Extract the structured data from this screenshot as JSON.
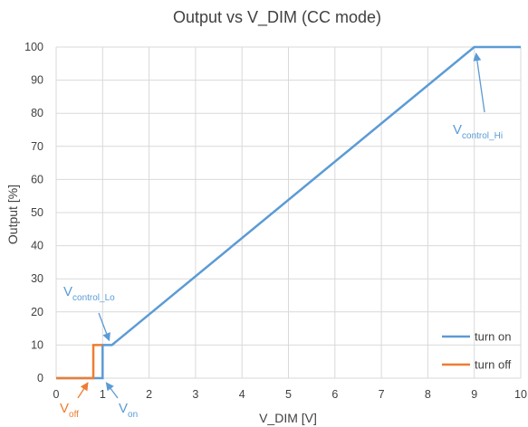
{
  "chart_data": {
    "type": "line",
    "title": "Output vs V_DIM (CC mode)",
    "xlabel": "V_DIM [V]",
    "ylabel": "Output  [%]",
    "xlim": [
      0,
      10
    ],
    "ylim": [
      0,
      100
    ],
    "x_ticks": [
      0,
      1,
      2,
      3,
      4,
      5,
      6,
      7,
      8,
      9,
      10
    ],
    "y_ticks": [
      0,
      10,
      20,
      30,
      40,
      50,
      60,
      70,
      80,
      90,
      100
    ],
    "grid": true,
    "legend_position": "bottom-right",
    "series": [
      {
        "name": "turn on",
        "color": "#5b9bd5",
        "x": [
          0,
          1.0,
          1.0,
          1.2,
          9.0,
          10
        ],
        "y": [
          0,
          0,
          10,
          10,
          100,
          100
        ]
      },
      {
        "name": "turn off",
        "color": "#ed7d31",
        "x": [
          0,
          0.8,
          0.8,
          1.0
        ],
        "y": [
          0,
          0,
          10,
          10
        ]
      }
    ],
    "annotations": [
      {
        "id": "voff",
        "main": "V",
        "sub": "off",
        "color": "#ed7d31",
        "x": 0.8,
        "y": 0
      },
      {
        "id": "von",
        "main": "V",
        "sub": "on",
        "color": "#5b9bd5",
        "x": 1.0,
        "y": 0
      },
      {
        "id": "vcontrol-lo",
        "main": "V",
        "sub": "control_Lo",
        "color": "#5b9bd5",
        "x": 1.2,
        "y": 10
      },
      {
        "id": "vcontrol-hi",
        "main": "V",
        "sub": "control_Hi",
        "color": "#5b9bd5",
        "x": 9.0,
        "y": 100
      }
    ]
  }
}
